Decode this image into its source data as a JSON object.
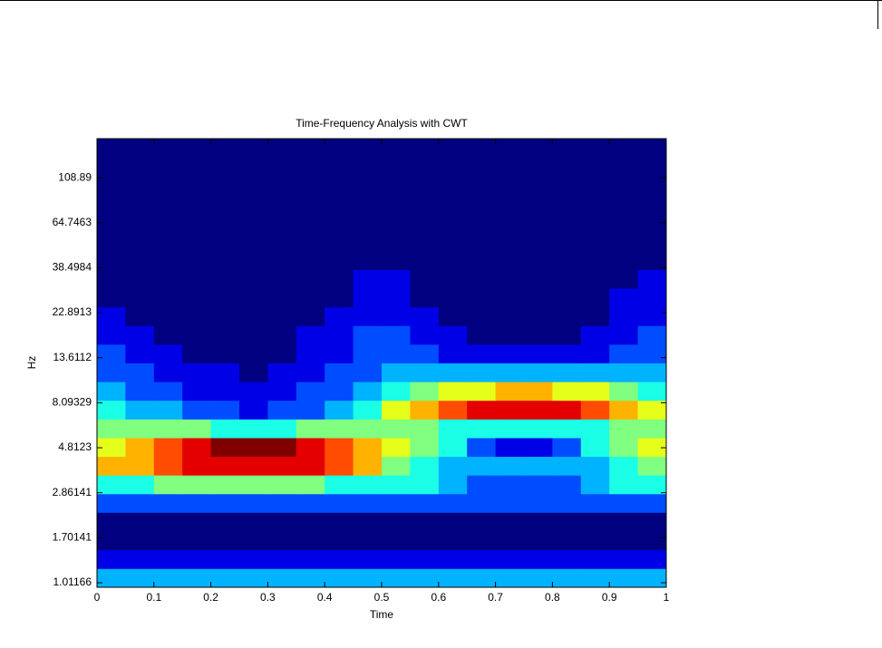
{
  "chart_data": {
    "type": "heatmap",
    "title": "Time-Frequency Analysis with CWT",
    "xlabel": "Time",
    "ylabel": "Hz",
    "colormap": "jet",
    "ylog": true,
    "xlim": [
      0,
      1
    ],
    "ylim": [
      0.96,
      171
    ],
    "xticks": [
      0,
      0.1,
      0.2,
      0.3,
      0.4,
      0.5,
      0.6,
      0.7,
      0.8,
      0.9,
      1
    ],
    "yticks": [
      1.01166,
      1.70141,
      2.86141,
      4.8123,
      8.09329,
      13.6112,
      22.8913,
      38.4984,
      64.7463,
      108.89
    ],
    "x": [
      0.025,
      0.075,
      0.125,
      0.175,
      0.225,
      0.275,
      0.325,
      0.375,
      0.425,
      0.475,
      0.525,
      0.575,
      0.625,
      0.675,
      0.725,
      0.775,
      0.825,
      0.875,
      0.925,
      0.975
    ],
    "y": [
      1.07,
      1.33,
      1.65,
      2.05,
      2.54,
      3.15,
      3.91,
      4.85,
      6.02,
      7.47,
      9.27,
      11.5,
      14.3,
      17.7,
      22.0,
      27.3,
      33.9,
      42.0,
      52.2,
      64.7,
      80.3,
      99.7,
      124,
      154
    ],
    "z": [
      [
        0.3,
        0.3,
        0.3,
        0.3,
        0.3,
        0.3,
        0.3,
        0.3,
        0.3,
        0.3,
        0.3,
        0.3,
        0.3,
        0.3,
        0.3,
        0.3,
        0.3,
        0.3,
        0.3,
        0.3
      ],
      [
        0.1,
        0.1,
        0.1,
        0.1,
        0.1,
        0.1,
        0.1,
        0.1,
        0.1,
        0.1,
        0.1,
        0.1,
        0.1,
        0.1,
        0.1,
        0.1,
        0.1,
        0.1,
        0.1,
        0.1
      ],
      [
        0,
        0,
        0,
        0,
        0,
        0,
        0,
        0,
        0,
        0,
        0,
        0,
        0,
        0,
        0,
        0,
        0,
        0,
        0,
        0
      ],
      [
        0,
        0,
        0,
        0,
        0,
        0,
        0,
        0,
        0,
        0,
        0,
        0,
        0,
        0,
        0,
        0,
        0,
        0,
        0,
        0
      ],
      [
        0.2,
        0.2,
        0.2,
        0.2,
        0.2,
        0.2,
        0.2,
        0.2,
        0.2,
        0.2,
        0.2,
        0.2,
        0.2,
        0.2,
        0.2,
        0.2,
        0.2,
        0.2,
        0.2,
        0.2
      ],
      [
        0.4,
        0.4,
        0.5,
        0.5,
        0.5,
        0.5,
        0.5,
        0.5,
        0.4,
        0.4,
        0.4,
        0.4,
        0.3,
        0.2,
        0.2,
        0.2,
        0.2,
        0.3,
        0.4,
        0.4
      ],
      [
        0.7,
        0.7,
        0.8,
        0.9,
        0.9,
        0.9,
        0.9,
        0.9,
        0.8,
        0.7,
        0.5,
        0.4,
        0.3,
        0.3,
        0.3,
        0.3,
        0.3,
        0.3,
        0.4,
        0.5
      ],
      [
        0.6,
        0.7,
        0.8,
        0.9,
        1.0,
        1.0,
        1.0,
        0.9,
        0.8,
        0.7,
        0.6,
        0.5,
        0.4,
        0.2,
        0.1,
        0.1,
        0.2,
        0.4,
        0.5,
        0.6
      ],
      [
        0.5,
        0.5,
        0.5,
        0.5,
        0.4,
        0.4,
        0.4,
        0.5,
        0.5,
        0.5,
        0.5,
        0.5,
        0.4,
        0.4,
        0.4,
        0.4,
        0.4,
        0.4,
        0.5,
        0.5
      ],
      [
        0.4,
        0.3,
        0.3,
        0.2,
        0.2,
        0.1,
        0.2,
        0.2,
        0.3,
        0.4,
        0.6,
        0.7,
        0.8,
        0.9,
        0.9,
        0.9,
        0.9,
        0.8,
        0.7,
        0.6
      ],
      [
        0.3,
        0.2,
        0.2,
        0.1,
        0.1,
        0.1,
        0.1,
        0.2,
        0.2,
        0.3,
        0.4,
        0.5,
        0.6,
        0.6,
        0.7,
        0.7,
        0.6,
        0.6,
        0.5,
        0.4
      ],
      [
        0.2,
        0.2,
        0.1,
        0.1,
        0.1,
        0,
        0.1,
        0.1,
        0.2,
        0.2,
        0.3,
        0.3,
        0.3,
        0.3,
        0.3,
        0.3,
        0.3,
        0.3,
        0.3,
        0.3
      ],
      [
        0.2,
        0.1,
        0.1,
        0,
        0,
        0,
        0,
        0.1,
        0.1,
        0.2,
        0.2,
        0.2,
        0.1,
        0.1,
        0.1,
        0.1,
        0.1,
        0.1,
        0.2,
        0.2
      ],
      [
        0.1,
        0.1,
        0,
        0,
        0,
        0,
        0,
        0.1,
        0.1,
        0.2,
        0.2,
        0.1,
        0.1,
        0,
        0,
        0,
        0,
        0.1,
        0.1,
        0.2
      ],
      [
        0.1,
        0,
        0,
        0,
        0,
        0,
        0,
        0,
        0.1,
        0.1,
        0.1,
        0.1,
        0,
        0,
        0,
        0,
        0,
        0,
        0.1,
        0.1
      ],
      [
        0,
        0,
        0,
        0,
        0,
        0,
        0,
        0,
        0,
        0.1,
        0.1,
        0,
        0,
        0,
        0,
        0,
        0,
        0,
        0.1,
        0.1
      ],
      [
        0,
        0,
        0,
        0,
        0,
        0,
        0,
        0,
        0,
        0.1,
        0.1,
        0,
        0,
        0,
        0,
        0,
        0,
        0,
        0,
        0.1
      ],
      [
        0,
        0,
        0,
        0,
        0,
        0,
        0,
        0,
        0,
        0,
        0,
        0,
        0,
        0,
        0,
        0,
        0,
        0,
        0,
        0
      ],
      [
        0,
        0,
        0,
        0,
        0,
        0,
        0,
        0,
        0,
        0,
        0,
        0,
        0,
        0,
        0,
        0,
        0,
        0,
        0,
        0
      ],
      [
        0,
        0,
        0,
        0,
        0,
        0,
        0,
        0,
        0,
        0,
        0,
        0,
        0,
        0,
        0,
        0,
        0,
        0,
        0,
        0
      ],
      [
        0,
        0,
        0,
        0,
        0,
        0,
        0,
        0,
        0,
        0,
        0,
        0,
        0,
        0,
        0,
        0,
        0,
        0,
        0,
        0
      ],
      [
        0,
        0,
        0,
        0,
        0,
        0,
        0,
        0,
        0,
        0,
        0,
        0,
        0,
        0,
        0,
        0,
        0,
        0,
        0,
        0
      ],
      [
        0,
        0,
        0,
        0,
        0,
        0,
        0,
        0,
        0,
        0,
        0,
        0,
        0,
        0,
        0,
        0,
        0,
        0,
        0,
        0
      ],
      [
        0,
        0,
        0,
        0,
        0,
        0,
        0,
        0,
        0,
        0,
        0,
        0,
        0,
        0,
        0,
        0,
        0,
        0,
        0,
        0
      ]
    ]
  }
}
